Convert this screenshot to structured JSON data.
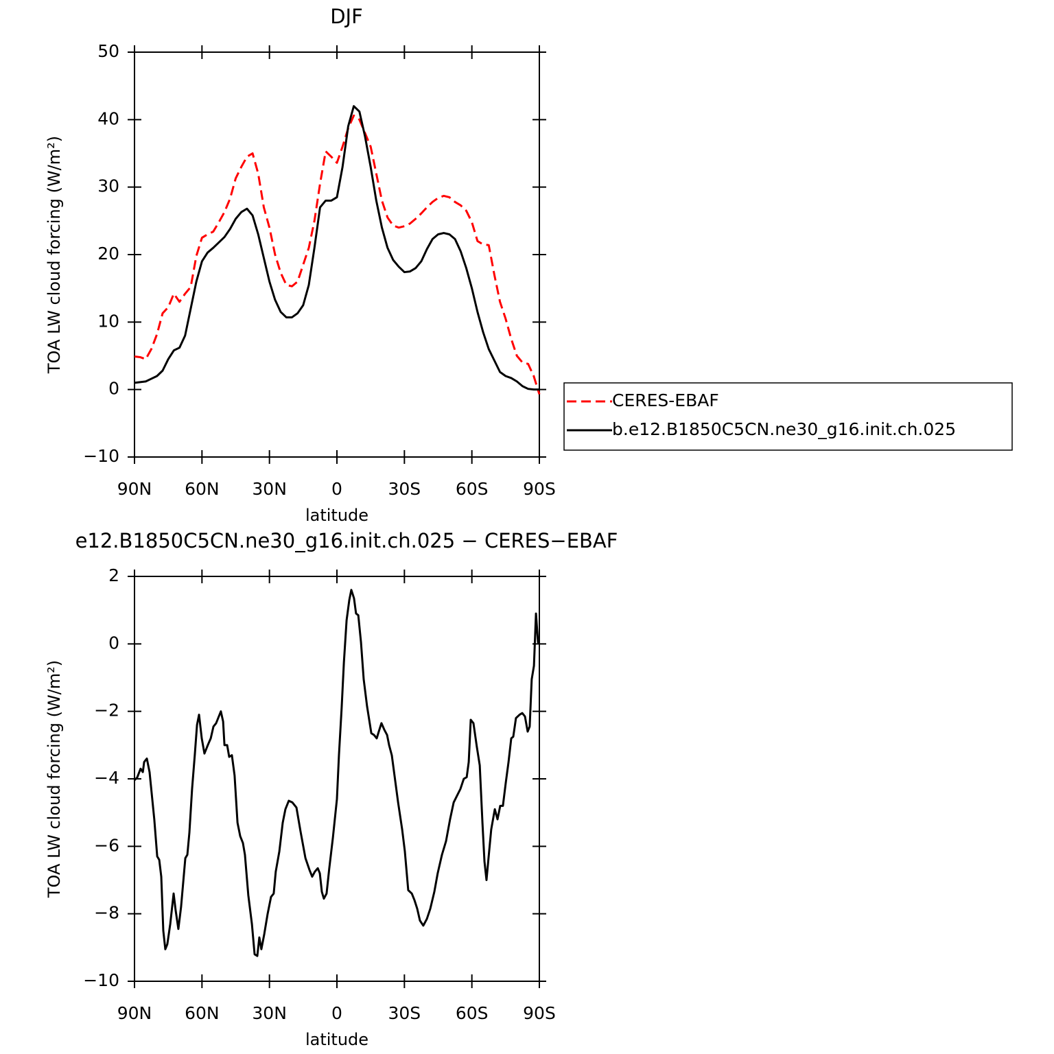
{
  "chart_data": [
    {
      "type": "line",
      "title": "DJF",
      "xlabel": "latitude",
      "ylabel": "TOA LW cloud forcing (W/m²)",
      "xlim": [
        90,
        -90
      ],
      "xticks": [
        {
          "value": 90,
          "label": "90N"
        },
        {
          "value": 60,
          "label": "60N"
        },
        {
          "value": 30,
          "label": "30N"
        },
        0,
        {
          "value": -30,
          "label": "30S"
        },
        {
          "value": -60,
          "label": "60S"
        },
        {
          "value": -90,
          "label": "90S"
        }
      ],
      "ylim": [
        -10,
        50
      ],
      "yticks": [
        {
          "value": -10,
          "label": "−10"
        },
        0,
        10,
        20,
        30,
        40,
        50
      ],
      "legend": "right",
      "x": [
        90,
        87.5,
        85,
        82.5,
        80,
        77.5,
        75,
        72.5,
        70,
        67.5,
        65,
        62.5,
        60,
        57.5,
        55,
        52.5,
        50,
        47.5,
        45,
        42.5,
        40,
        37.5,
        35,
        32.5,
        30,
        27.5,
        25,
        22.5,
        20,
        17.5,
        15,
        12.5,
        10,
        7.5,
        5,
        2.5,
        0,
        -2.5,
        -5,
        -7.5,
        -10,
        -12.5,
        -15,
        -17.5,
        -20,
        -22.5,
        -25,
        -27.5,
        -30,
        -32.5,
        -35,
        -37.5,
        -40,
        -42.5,
        -45,
        -47.5,
        -50,
        -52.5,
        -55,
        -57.5,
        -60,
        -62.5,
        -65,
        -67.5,
        -70,
        -72.5,
        -75,
        -77.5,
        -80,
        -82.5,
        -85,
        -87.5,
        -90
      ],
      "series": [
        {
          "name": "CERES-EBAF",
          "color": "#ff0000",
          "line_style": "dashed",
          "values": [
            4.9,
            4.8,
            4.5,
            6,
            8.2,
            11.3,
            12.2,
            14.2,
            13,
            14.2,
            15.2,
            19.8,
            22.5,
            23,
            23.4,
            24.8,
            26.3,
            28.3,
            31.3,
            33,
            34.5,
            35,
            32,
            27,
            24,
            20,
            17.3,
            15.5,
            15.3,
            16,
            18.5,
            21,
            25,
            30.5,
            35.3,
            34.5,
            33.6,
            36,
            38.7,
            40.6,
            40,
            38,
            36,
            32,
            28,
            25.5,
            24.3,
            24,
            24.2,
            24.6,
            25.3,
            26.1,
            27,
            27.8,
            28.4,
            28.7,
            28.5,
            27.8,
            27.3,
            26.5,
            24.8,
            22,
            21.5,
            21.4,
            17,
            13,
            10.5,
            7.5,
            5,
            4,
            3.8,
            2,
            -0.7
          ]
        },
        {
          "name": "b.e12.B1850C5CN.ne30_g16.init.ch.025",
          "color": "#000000",
          "line_style": "solid",
          "values": [
            1,
            1.1,
            1.2,
            1.6,
            2,
            2.8,
            4.5,
            5.8,
            6.2,
            8,
            12,
            16,
            19,
            20.3,
            21,
            21.8,
            22.6,
            23.8,
            25.3,
            26.3,
            26.8,
            25.8,
            23,
            19.5,
            16,
            13.3,
            11.5,
            10.7,
            10.7,
            11.3,
            12.5,
            15.5,
            21,
            27,
            28,
            28,
            28.5,
            33,
            39,
            42,
            41.2,
            37.5,
            33,
            28,
            24,
            21,
            19.2,
            18.2,
            17.4,
            17.5,
            18,
            19,
            20.8,
            22.3,
            23,
            23.2,
            23,
            22.3,
            20.5,
            18,
            15,
            11.5,
            8.5,
            6,
            4.3,
            2.6,
            2,
            1.7,
            1.2,
            0.5,
            0.1,
            0,
            0
          ]
        }
      ]
    },
    {
      "type": "line",
      "title": "e12.B1850C5CN.ne30_g16.init.ch.025 − CERES−EBAF",
      "xlabel": "latitude",
      "ylabel": "TOA LW cloud forcing (W/m²)",
      "xlim": [
        90,
        -90
      ],
      "xticks": [
        {
          "value": 90,
          "label": "90N"
        },
        {
          "value": 60,
          "label": "60N"
        },
        {
          "value": 30,
          "label": "30N"
        },
        0,
        {
          "value": -30,
          "label": "30S"
        },
        {
          "value": -60,
          "label": "60S"
        },
        {
          "value": -90,
          "label": "90S"
        }
      ],
      "ylim": [
        -10,
        2
      ],
      "yticks": [
        {
          "value": -10,
          "label": "−10"
        },
        {
          "value": -8,
          "label": "−8"
        },
        {
          "value": -6,
          "label": "−6"
        },
        {
          "value": -4,
          "label": "−4"
        },
        {
          "value": -2,
          "label": "−2"
        },
        0,
        2
      ],
      "color": "#000000",
      "x": [
        90,
        88.8,
        87.3,
        86.3,
        85.7,
        84.5,
        83.3,
        81.2,
        79.9,
        79.0,
        78.1,
        77.2,
        76.3,
        75.4,
        74.1,
        72.6,
        71.7,
        70.5,
        69.3,
        67.4,
        66.5,
        65.6,
        64.4,
        63.2,
        62.2,
        61.3,
        60.1,
        58.9,
        57.4,
        56.1,
        54.9,
        53.7,
        52.8,
        51.6,
        50.6,
        50.0,
        48.8,
        47.9,
        46.7,
        45.5,
        44.2,
        43.0,
        41.8,
        40.9,
        39.4,
        37.8,
        36.6,
        35.4,
        34.5,
        33.6,
        32.3,
        30.8,
        29.3,
        28.1,
        27.2,
        25.6,
        24.1,
        22.9,
        21.4,
        19.8,
        18.0,
        16.2,
        14.0,
        12.2,
        11.0,
        9.8,
        8.5,
        7.6,
        6.7,
        5.8,
        4.6,
        3.4,
        1.8,
        0,
        -0.9,
        -2.1,
        -3.1,
        -4.3,
        -5.5,
        -6.4,
        -7.6,
        -8.5,
        -9.5,
        -10.7,
        -11.9,
        -13.4,
        -15.3,
        -16.5,
        -17.7,
        -18.6,
        -19.8,
        -21.1,
        -22.3,
        -23.2,
        -24.4,
        -25.6,
        -27.2,
        -29.0,
        -30.2,
        -31.7,
        -33.3,
        -34.5,
        -35.7,
        -36.9,
        -38.4,
        -40.0,
        -41.5,
        -43.3,
        -44.8,
        -46.7,
        -48.5,
        -50.3,
        -51.9,
        -53.4,
        -54.9,
        -56.4,
        -57.7,
        -58.6,
        -59.5,
        -60.7,
        -62.2,
        -63.5,
        -64.7,
        -65.6,
        -66.5,
        -67.4,
        -68.6,
        -70.2,
        -71.4,
        -72.6,
        -73.8,
        -75.1,
        -76.3,
        -77.5,
        -78.4,
        -79.6,
        -81.2,
        -82.4,
        -83.6,
        -84.8,
        -85.7,
        -86.6,
        -87.6,
        -88.5,
        -89.4,
        -90
      ],
      "values": [
        -4.04,
        -3.96,
        -3.7,
        -3.8,
        -3.5,
        -3.4,
        -3.8,
        -5.2,
        -6.3,
        -6.4,
        -6.9,
        -8.5,
        -9.05,
        -8.9,
        -8.3,
        -7.4,
        -7.9,
        -8.45,
        -7.8,
        -6.35,
        -6.25,
        -5.6,
        -4.3,
        -3.3,
        -2.4,
        -2.1,
        -2.8,
        -3.25,
        -3.0,
        -2.8,
        -2.45,
        -2.35,
        -2.2,
        -2.0,
        -2.3,
        -3.0,
        -3.0,
        -3.35,
        -3.3,
        -3.9,
        -5.3,
        -5.7,
        -5.9,
        -6.25,
        -7.45,
        -8.3,
        -9.2,
        -9.25,
        -8.7,
        -9.05,
        -8.6,
        -8.0,
        -7.5,
        -7.4,
        -6.75,
        -6.15,
        -5.3,
        -4.9,
        -4.65,
        -4.7,
        -4.85,
        -5.55,
        -6.35,
        -6.7,
        -6.9,
        -6.75,
        -6.65,
        -6.8,
        -7.35,
        -7.55,
        -7.4,
        -6.65,
        -5.75,
        -4.6,
        -3.3,
        -1.9,
        -0.55,
        0.7,
        1.3,
        1.6,
        1.35,
        0.9,
        0.85,
        0.05,
        -1.05,
        -1.85,
        -2.65,
        -2.7,
        -2.8,
        -2.6,
        -2.35,
        -2.55,
        -2.7,
        -3.0,
        -3.3,
        -3.9,
        -4.7,
        -5.5,
        -6.15,
        -7.3,
        -7.4,
        -7.6,
        -7.85,
        -8.2,
        -8.35,
        -8.15,
        -7.85,
        -7.35,
        -6.8,
        -6.25,
        -5.85,
        -5.2,
        -4.7,
        -4.5,
        -4.3,
        -4.0,
        -3.95,
        -3.5,
        -2.25,
        -2.35,
        -3.05,
        -3.6,
        -5.3,
        -6.45,
        -7.0,
        -6.35,
        -5.5,
        -4.9,
        -5.2,
        -4.8,
        -4.8,
        -4.1,
        -3.5,
        -2.8,
        -2.75,
        -2.2,
        -2.1,
        -2.05,
        -2.15,
        -2.6,
        -2.45,
        -1.05,
        -0.65,
        0.9,
        0.05,
        0.0
      ]
    }
  ]
}
